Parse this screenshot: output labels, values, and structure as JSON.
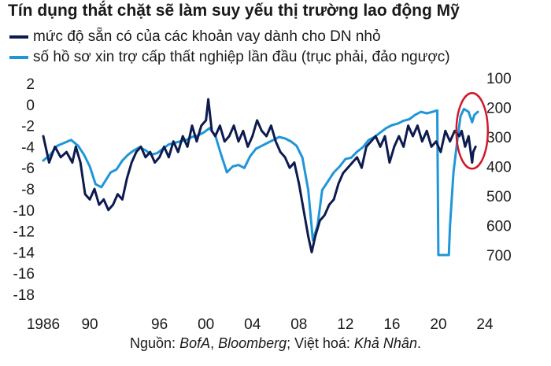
{
  "chart_data": {
    "type": "line",
    "title": "Tín dụng thắt chặt sẽ làm suy yếu thị trường lao động Mỹ",
    "xlabel": "",
    "ylabel_left": "",
    "ylabel_right": "",
    "xlim": [
      1986,
      2024
    ],
    "x_ticks": [
      1986,
      1990,
      1996,
      2000,
      2004,
      2008,
      2012,
      2016,
      2020,
      2024
    ],
    "x_tick_labels": [
      "1986",
      "90",
      "96",
      "00",
      "04",
      "08",
      "12",
      "16",
      "20",
      "24"
    ],
    "ylim_left": [
      -18,
      2
    ],
    "y_ticks_left": [
      2,
      0,
      -2,
      -4,
      -6,
      -8,
      -10,
      -12,
      -14,
      -16,
      -18
    ],
    "ylim_right_inverted": [
      100,
      700
    ],
    "y_ticks_right": [
      100,
      200,
      300,
      400,
      500,
      600,
      700
    ],
    "grid": false,
    "legend_position": "top-left",
    "series": [
      {
        "name": "mức độ sẵn có của các khoản vay dành cho DN nhỏ",
        "axis": "left",
        "color": "#0d1b4f",
        "points": [
          [
            1986.0,
            -3.0
          ],
          [
            1986.5,
            -5.5
          ],
          [
            1987.0,
            -4.0
          ],
          [
            1987.5,
            -5.0
          ],
          [
            1988.0,
            -4.5
          ],
          [
            1988.5,
            -5.5
          ],
          [
            1988.8,
            -4.0
          ],
          [
            1989.2,
            -5.5
          ],
          [
            1989.6,
            -8.5
          ],
          [
            1990.0,
            -9.0
          ],
          [
            1990.4,
            -8.0
          ],
          [
            1990.8,
            -9.5
          ],
          [
            1991.2,
            -9.0
          ],
          [
            1991.6,
            -10.0
          ],
          [
            1992.0,
            -9.5
          ],
          [
            1992.4,
            -8.5
          ],
          [
            1992.8,
            -9.0
          ],
          [
            1993.2,
            -7.0
          ],
          [
            1993.6,
            -5.5
          ],
          [
            1994.0,
            -4.5
          ],
          [
            1994.4,
            -4.0
          ],
          [
            1994.8,
            -5.0
          ],
          [
            1995.2,
            -4.5
          ],
          [
            1995.6,
            -5.5
          ],
          [
            1996.0,
            -5.0
          ],
          [
            1996.4,
            -4.0
          ],
          [
            1996.8,
            -5.0
          ],
          [
            1997.2,
            -3.5
          ],
          [
            1997.6,
            -4.5
          ],
          [
            1998.0,
            -3.0
          ],
          [
            1998.4,
            -4.0
          ],
          [
            1998.8,
            -2.0
          ],
          [
            1999.2,
            -3.5
          ],
          [
            1999.6,
            -2.0
          ],
          [
            2000.0,
            -1.5
          ],
          [
            2000.2,
            0.5
          ],
          [
            2000.5,
            -2.5
          ],
          [
            2000.8,
            -3.0
          ],
          [
            2001.2,
            -2.0
          ],
          [
            2001.6,
            -3.5
          ],
          [
            2002.0,
            -3.0
          ],
          [
            2002.4,
            -2.0
          ],
          [
            2002.8,
            -3.5
          ],
          [
            2003.2,
            -2.5
          ],
          [
            2003.6,
            -4.0
          ],
          [
            2004.0,
            -3.0
          ],
          [
            2004.4,
            -1.5
          ],
          [
            2004.8,
            -2.5
          ],
          [
            2005.2,
            -3.0
          ],
          [
            2005.6,
            -2.0
          ],
          [
            2006.0,
            -3.5
          ],
          [
            2006.4,
            -4.5
          ],
          [
            2006.8,
            -5.0
          ],
          [
            2007.2,
            -6.0
          ],
          [
            2007.6,
            -5.5
          ],
          [
            2008.0,
            -7.5
          ],
          [
            2008.4,
            -10.0
          ],
          [
            2008.8,
            -12.5
          ],
          [
            2009.1,
            -14.0
          ],
          [
            2009.4,
            -12.5
          ],
          [
            2009.8,
            -11.0
          ],
          [
            2010.2,
            -10.5
          ],
          [
            2010.6,
            -9.5
          ],
          [
            2011.0,
            -9.0
          ],
          [
            2011.4,
            -7.5
          ],
          [
            2011.8,
            -6.5
          ],
          [
            2012.2,
            -6.0
          ],
          [
            2012.6,
            -5.5
          ],
          [
            2013.0,
            -5.0
          ],
          [
            2013.4,
            -6.0
          ],
          [
            2013.8,
            -4.0
          ],
          [
            2014.2,
            -3.5
          ],
          [
            2014.6,
            -3.0
          ],
          [
            2015.0,
            -4.0
          ],
          [
            2015.4,
            -3.0
          ],
          [
            2015.8,
            -5.5
          ],
          [
            2016.2,
            -4.0
          ],
          [
            2016.6,
            -3.0
          ],
          [
            2017.0,
            -4.0
          ],
          [
            2017.4,
            -2.0
          ],
          [
            2017.8,
            -3.0
          ],
          [
            2018.2,
            -2.0
          ],
          [
            2018.6,
            -3.5
          ],
          [
            2019.0,
            -2.5
          ],
          [
            2019.4,
            -4.0
          ],
          [
            2019.8,
            -3.5
          ],
          [
            2020.2,
            -4.5
          ],
          [
            2020.6,
            -2.5
          ],
          [
            2021.0,
            -3.5
          ],
          [
            2021.4,
            -2.5
          ],
          [
            2021.8,
            -3.0
          ],
          [
            2022.0,
            -2.5
          ],
          [
            2022.3,
            -4.0
          ],
          [
            2022.6,
            -3.0
          ],
          [
            2022.9,
            -5.5
          ],
          [
            2023.0,
            -4.5
          ],
          [
            2023.2,
            -4.0
          ]
        ]
      },
      {
        "name": "số hồ sơ xin trợ cấp thất nghiệp lần đầu (trục phải, đảo ngược)",
        "axis": "right",
        "color": "#1f96d9",
        "points": [
          [
            1986.0,
            380
          ],
          [
            1986.6,
            360
          ],
          [
            1987.2,
            330
          ],
          [
            1987.8,
            320
          ],
          [
            1988.4,
            310
          ],
          [
            1989.0,
            330
          ],
          [
            1989.5,
            360
          ],
          [
            1990.0,
            400
          ],
          [
            1990.5,
            460
          ],
          [
            1991.0,
            470
          ],
          [
            1991.4,
            445
          ],
          [
            1991.8,
            420
          ],
          [
            1992.3,
            410
          ],
          [
            1992.8,
            380
          ],
          [
            1993.3,
            360
          ],
          [
            1993.8,
            345
          ],
          [
            1994.3,
            335
          ],
          [
            1994.8,
            345
          ],
          [
            1995.3,
            360
          ],
          [
            1995.8,
            355
          ],
          [
            1996.3,
            340
          ],
          [
            1996.8,
            325
          ],
          [
            1997.3,
            320
          ],
          [
            1997.8,
            315
          ],
          [
            1998.3,
            310
          ],
          [
            1998.8,
            300
          ],
          [
            1999.3,
            295
          ],
          [
            1999.8,
            285
          ],
          [
            2000.3,
            270
          ],
          [
            2000.8,
            295
          ],
          [
            2001.3,
            360
          ],
          [
            2001.8,
            420
          ],
          [
            2002.3,
            400
          ],
          [
            2002.8,
            395
          ],
          [
            2003.3,
            405
          ],
          [
            2003.8,
            365
          ],
          [
            2004.3,
            340
          ],
          [
            2004.8,
            330
          ],
          [
            2005.3,
            320
          ],
          [
            2005.8,
            310
          ],
          [
            2006.3,
            300
          ],
          [
            2006.8,
            305
          ],
          [
            2007.3,
            315
          ],
          [
            2007.8,
            330
          ],
          [
            2008.3,
            370
          ],
          [
            2008.8,
            480
          ],
          [
            2009.2,
            650
          ],
          [
            2009.6,
            600
          ],
          [
            2010.0,
            480
          ],
          [
            2010.5,
            450
          ],
          [
            2011.0,
            420
          ],
          [
            2011.5,
            400
          ],
          [
            2012.0,
            375
          ],
          [
            2012.5,
            370
          ],
          [
            2013.0,
            350
          ],
          [
            2013.5,
            335
          ],
          [
            2014.0,
            310
          ],
          [
            2014.5,
            300
          ],
          [
            2015.0,
            285
          ],
          [
            2015.5,
            270
          ],
          [
            2016.0,
            260
          ],
          [
            2016.5,
            255
          ],
          [
            2017.0,
            245
          ],
          [
            2017.5,
            240
          ],
          [
            2018.0,
            225
          ],
          [
            2018.5,
            215
          ],
          [
            2019.0,
            220
          ],
          [
            2019.5,
            215
          ],
          [
            2019.9,
            210
          ],
          [
            2020.0,
            700
          ],
          [
            2020.5,
            700
          ],
          [
            2020.9,
            700
          ],
          [
            2021.0,
            600
          ],
          [
            2021.3,
            420
          ],
          [
            2021.6,
            320
          ],
          [
            2021.9,
            230
          ],
          [
            2022.2,
            205
          ],
          [
            2022.6,
            215
          ],
          [
            2022.9,
            250
          ],
          [
            2023.1,
            225
          ],
          [
            2023.4,
            215
          ]
        ]
      }
    ],
    "annotations": [
      {
        "type": "ellipse",
        "color": "#d0192b",
        "x": 2022.9,
        "y_left": -2.5
      }
    ]
  },
  "legend": {
    "items": [
      {
        "label": "mức độ sẵn có của các khoản vay dành cho DN nhỏ",
        "color": "#0d1b4f"
      },
      {
        "label": "số hồ sơ xin trợ cấp thất nghiệp lần đầu (trục phải, đảo ngược)",
        "color": "#1f96d9"
      }
    ]
  },
  "source": {
    "prefix": "Nguồn: ",
    "bofa": "BofA",
    "sep1": ", ",
    "bloomberg": "Bloomberg",
    "sep2": "; Việt hoá: ",
    "author": "Khả Nhân",
    "suffix": "."
  }
}
